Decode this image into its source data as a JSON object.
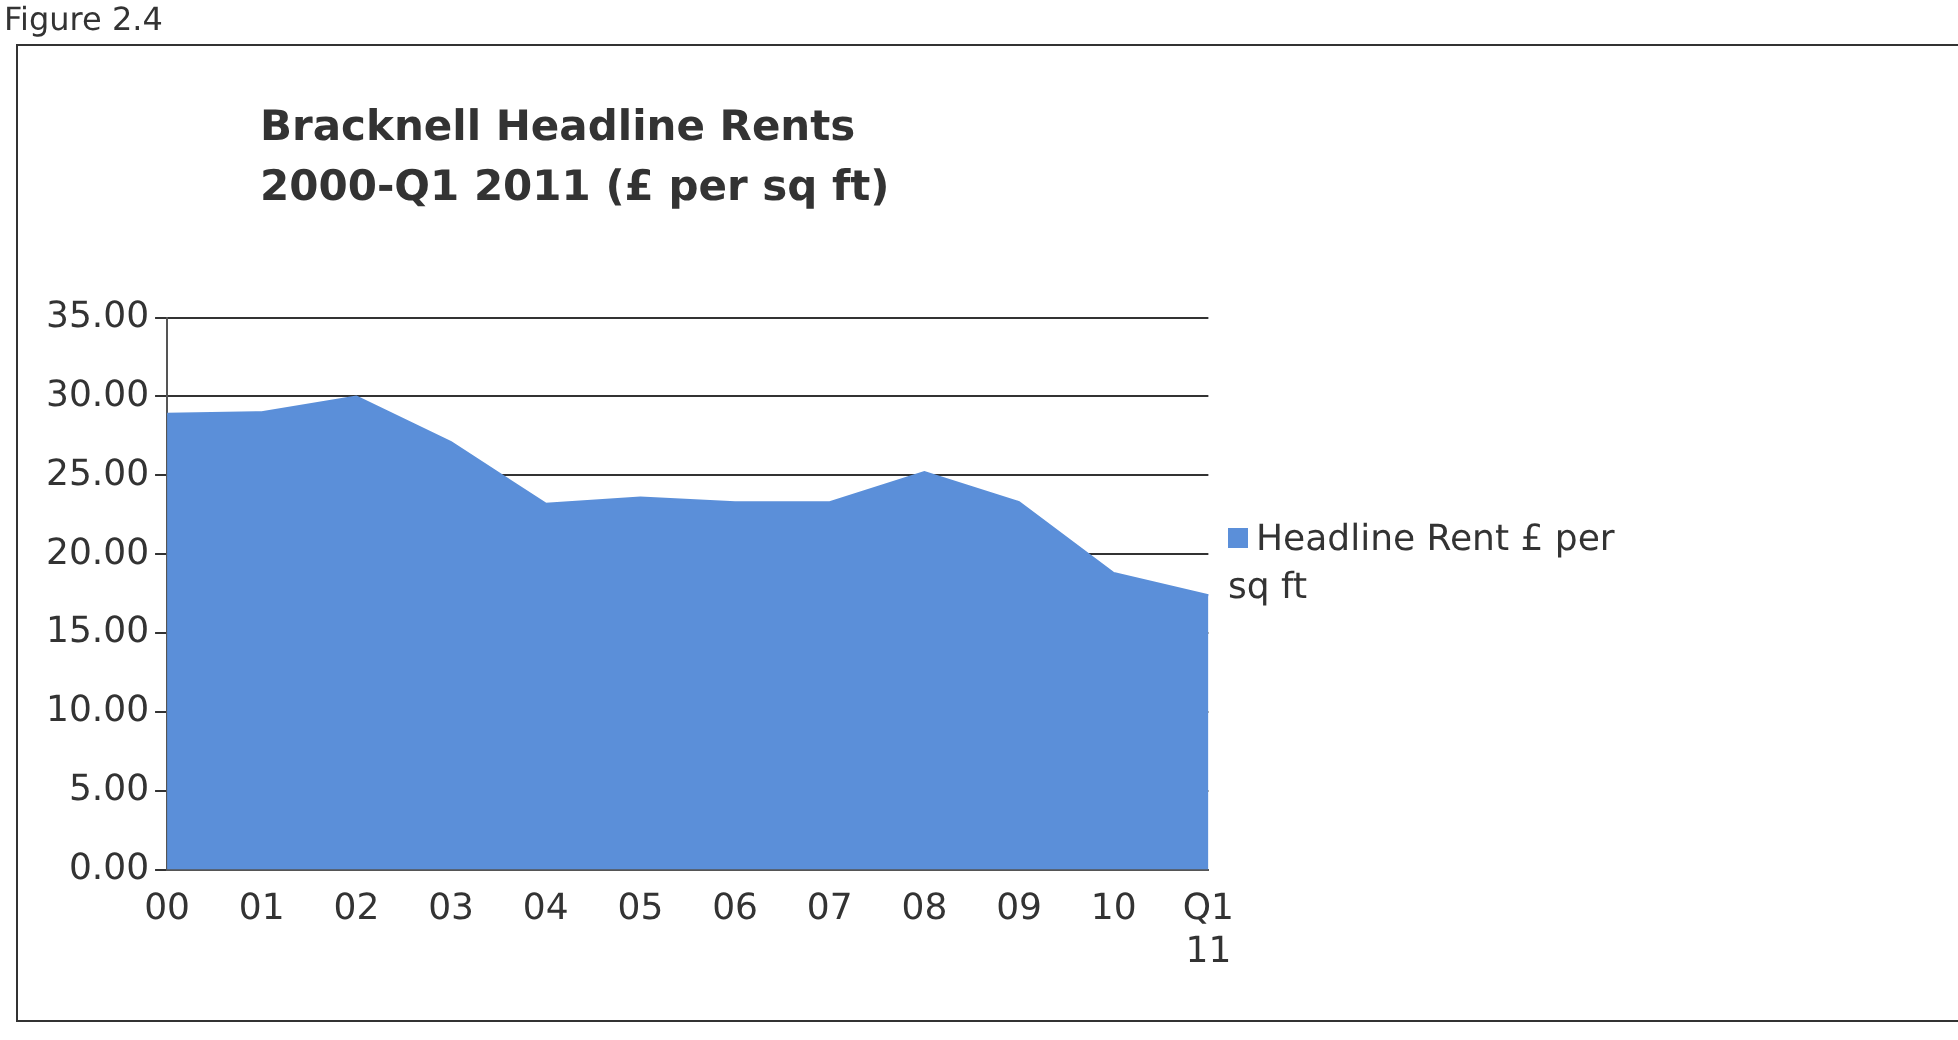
{
  "chart_data": {
    "type": "area",
    "title": "Bracknell Headline Rents 2000-Q1 2011 (£ per sq ft)",
    "annotations": [
      "Figure 2.4"
    ],
    "categories": [
      "00",
      "01",
      "02",
      "03",
      "04",
      "05",
      "06",
      "07",
      "08",
      "09",
      "10",
      "Q1 11"
    ],
    "series": [
      {
        "name": "Headline Rent £ per sq ft",
        "color": "#5b8fd9",
        "values": [
          28.9,
          29.0,
          30.0,
          27.1,
          23.2,
          23.6,
          23.3,
          23.3,
          25.2,
          23.3,
          18.8,
          17.4
        ]
      }
    ],
    "ylim": [
      0,
      35
    ],
    "yticks": [
      {
        "value": 0,
        "label": "0.00"
      },
      {
        "value": 5,
        "label": "5.00"
      },
      {
        "value": 10,
        "label": "10.00"
      },
      {
        "value": 15,
        "label": "15.00"
      },
      {
        "value": 20,
        "label": "20.00"
      },
      {
        "value": 25,
        "label": "25.00"
      },
      {
        "value": 30,
        "label": "30.00"
      },
      {
        "value": 35,
        "label": "35.00"
      }
    ],
    "grid": "y",
    "legend": "right"
  }
}
